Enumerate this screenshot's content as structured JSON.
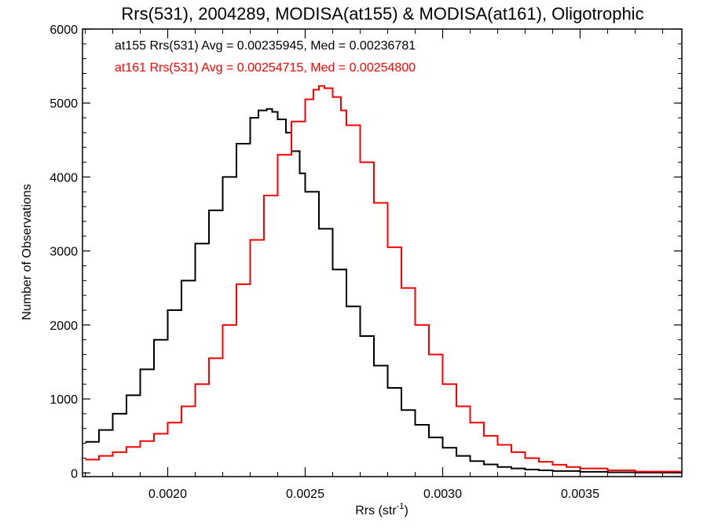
{
  "chart_data": {
    "type": "line",
    "title": "Rrs(531), 2004289, MODISA(at155) & MODISA(at161), Oligotrophic",
    "xlabel_main": "Rrs (str",
    "xlabel_sup": "-1",
    "xlabel_tail": ")",
    "ylabel": "Number of Observations",
    "xlim": [
      0.00169,
      0.00387
    ],
    "ylim": [
      -50,
      6000
    ],
    "xticks": [
      0.002,
      0.0025,
      0.003,
      0.0035
    ],
    "xtick_labels": [
      "0.0020",
      "0.0025",
      "0.0030",
      "0.0035"
    ],
    "yticks": [
      0,
      1000,
      2000,
      3000,
      4000,
      5000,
      6000
    ],
    "ytick_labels": [
      "0",
      "1000",
      "2000",
      "3000",
      "4000",
      "5000",
      "6000"
    ],
    "grid": false,
    "series": [
      {
        "name": "at155",
        "color": "#000000",
        "legend": "at155 Rrs(531) Avg = 0.00235945, Med = 0.00236781",
        "x": [
          0.0017,
          0.00175,
          0.0018,
          0.00185,
          0.0019,
          0.00195,
          0.002,
          0.00205,
          0.0021,
          0.00215,
          0.0022,
          0.00225,
          0.0023,
          0.00233,
          0.00236,
          0.00238,
          0.0024,
          0.00243,
          0.00245,
          0.00248,
          0.0025,
          0.00255,
          0.0026,
          0.00265,
          0.0027,
          0.00275,
          0.0028,
          0.00285,
          0.0029,
          0.00295,
          0.003,
          0.00305,
          0.0031,
          0.00315,
          0.0032,
          0.00325,
          0.0033,
          0.00335,
          0.0034,
          0.0035,
          0.0036,
          0.0037,
          0.00387
        ],
        "y": [
          420,
          580,
          800,
          1050,
          1400,
          1800,
          2200,
          2600,
          3100,
          3550,
          4000,
          4450,
          4800,
          4900,
          4920,
          4880,
          4780,
          4600,
          4350,
          4050,
          3800,
          3300,
          2750,
          2250,
          1850,
          1450,
          1150,
          850,
          650,
          480,
          340,
          230,
          160,
          115,
          80,
          60,
          45,
          35,
          25,
          15,
          8,
          5,
          2
        ]
      },
      {
        "name": "at161",
        "color": "#ff0000",
        "legend": "at161 Rrs(531) Avg = 0.00254715, Med = 0.00254800",
        "x": [
          0.0017,
          0.00175,
          0.0018,
          0.00185,
          0.0019,
          0.00195,
          0.002,
          0.00205,
          0.0021,
          0.00215,
          0.0022,
          0.00225,
          0.0023,
          0.00235,
          0.0024,
          0.00245,
          0.0025,
          0.00253,
          0.00255,
          0.00257,
          0.0026,
          0.00263,
          0.00265,
          0.0027,
          0.00275,
          0.0028,
          0.00285,
          0.0029,
          0.00295,
          0.003,
          0.00305,
          0.0031,
          0.00315,
          0.0032,
          0.00325,
          0.0033,
          0.00335,
          0.0034,
          0.00345,
          0.0035,
          0.0036,
          0.0037,
          0.00387
        ],
        "y": [
          180,
          230,
          280,
          350,
          430,
          530,
          680,
          900,
          1200,
          1550,
          2000,
          2550,
          3150,
          3750,
          4300,
          4750,
          5050,
          5180,
          5230,
          5200,
          5080,
          4900,
          4700,
          4200,
          3650,
          3050,
          2500,
          2000,
          1600,
          1200,
          900,
          680,
          500,
          380,
          280,
          200,
          150,
          110,
          80,
          60,
          35,
          18,
          6
        ]
      }
    ]
  }
}
